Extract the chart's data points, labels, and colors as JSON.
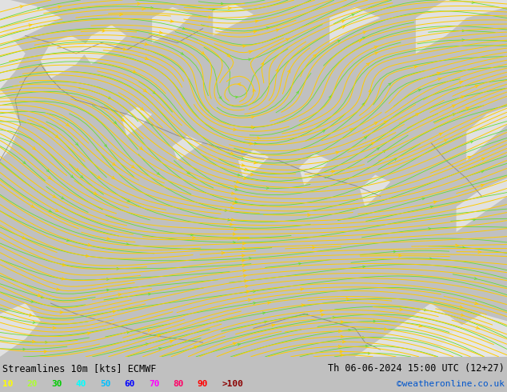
{
  "title_left": "Streamlines 10m [kts] ECMWF",
  "title_right": "Th 06-06-2024 15:00 UTC (12+27)",
  "credit": "©weatheronline.co.uk",
  "legend_values": [
    "10",
    "20",
    "30",
    "40",
    "50",
    "60",
    "70",
    "80",
    "90",
    ">100"
  ],
  "legend_colors": [
    "#ffff00",
    "#adff2f",
    "#00cc00",
    "#00ffff",
    "#00bfff",
    "#0000ff",
    "#ff00ff",
    "#ff0066",
    "#ff0000",
    "#8b0000"
  ],
  "bg_color": "#c8f5a0",
  "gray_patch_color": "#d8d8d8",
  "border_color": "#888888",
  "streamline_color_main": "#ffcc00",
  "streamline_color_slow": "#66dd44",
  "bottom_bar_color": "#ffffff",
  "text_color": "#000000",
  "figsize": [
    6.34,
    4.9
  ],
  "dpi": 100
}
